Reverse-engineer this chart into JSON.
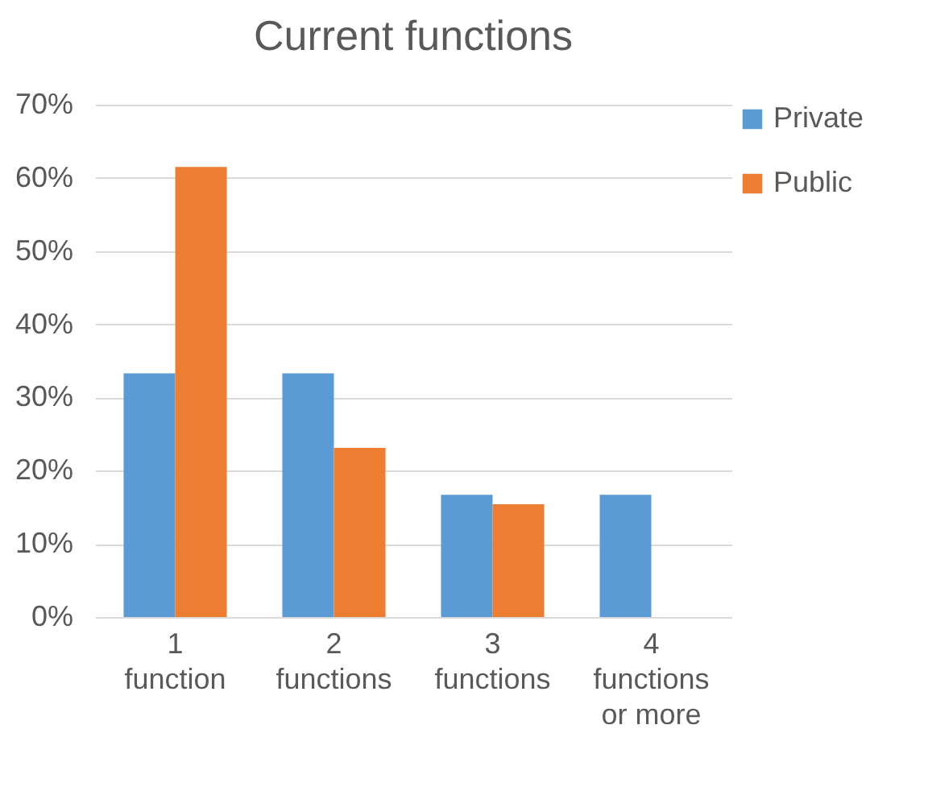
{
  "chart_data": {
    "type": "bar",
    "title": "Current functions",
    "categories": [
      "1 function",
      "2 functions",
      "3 functions",
      "4 functions or more"
    ],
    "series": [
      {
        "name": "Private",
        "color": "#5b9bd5",
        "values": [
          33.3,
          33.3,
          16.7,
          16.7
        ]
      },
      {
        "name": "Public",
        "color": "#ed7d31",
        "values": [
          61.5,
          23.1,
          15.4,
          0
        ]
      }
    ],
    "ylim": [
      0,
      70
    ],
    "yticks": [
      {
        "value": 0,
        "label": "0%"
      },
      {
        "value": 10,
        "label": "10%"
      },
      {
        "value": 20,
        "label": "20%"
      },
      {
        "value": 30,
        "label": "30%"
      },
      {
        "value": 40,
        "label": "40%"
      },
      {
        "value": 50,
        "label": "50%"
      },
      {
        "value": 60,
        "label": "60%"
      },
      {
        "value": 70,
        "label": "70%"
      }
    ],
    "grid": "y",
    "legend": "right"
  }
}
